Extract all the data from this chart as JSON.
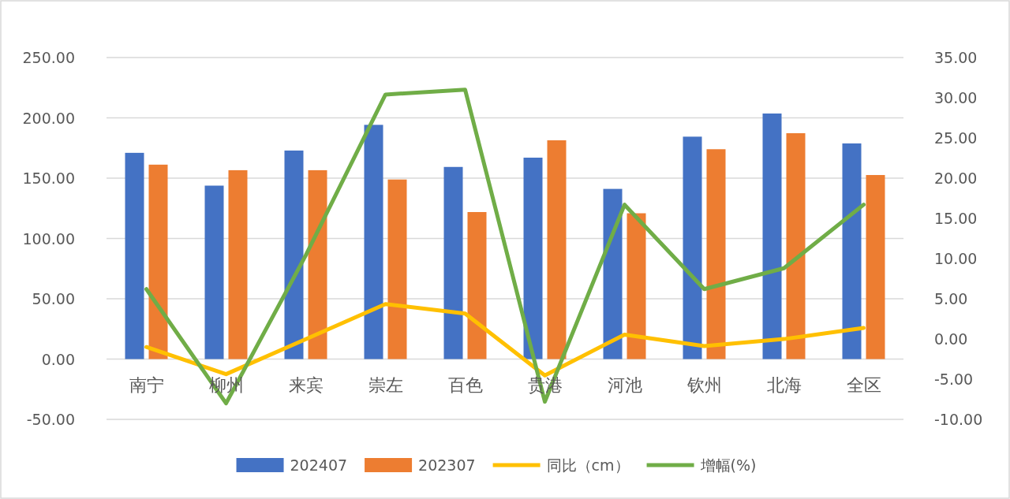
{
  "chart_data": {
    "type": "bar",
    "categories": [
      "南宁",
      "柳州",
      "来宾",
      "崇左",
      "百色",
      "贵港",
      "河池",
      "钦州",
      "北海",
      "全区"
    ],
    "series": [
      {
        "name": "202407",
        "color": "#4472c4",
        "values": [
          171.0,
          143.8,
          172.9,
          194.2,
          159.3,
          167.0,
          141.1,
          184.4,
          203.6,
          178.8
        ]
      },
      {
        "name": "202307",
        "color": "#ed7d31",
        "values": [
          161.2,
          156.6,
          156.6,
          148.9,
          121.9,
          181.4,
          120.9,
          174.0,
          187.3,
          152.6
        ]
      },
      {
        "name": "同比（cm）",
        "type": "line",
        "color": "#ffc000",
        "values": [
          10.0,
          -12.5,
          16.5,
          45.6,
          37.8,
          -13.5,
          20.3,
          10.8,
          16.6,
          25.8
        ]
      },
      {
        "name": "增幅(%)",
        "type": "line",
        "axis": "y2",
        "color": "#70ad47",
        "values": [
          6.2,
          -8.0,
          10.4,
          30.4,
          31.0,
          -7.8,
          16.7,
          6.2,
          8.8,
          16.7
        ]
      }
    ],
    "ylim": [
      -50,
      250
    ],
    "yticks": [
      {
        "value": -50,
        "label": "-50.00"
      },
      {
        "value": 0,
        "label": "0.00"
      },
      {
        "value": 50,
        "label": "50.00"
      },
      {
        "value": 100,
        "label": "100.00"
      },
      {
        "value": 150,
        "label": "150.00"
      },
      {
        "value": 200,
        "label": "200.00"
      },
      {
        "value": 250,
        "label": "250.00"
      }
    ],
    "y2lim": [
      -10,
      35
    ],
    "y2ticks": [
      {
        "value": -10,
        "label": "-10.00"
      },
      {
        "value": -5,
        "label": "-5.00"
      },
      {
        "value": 0,
        "label": "0.00"
      },
      {
        "value": 5,
        "label": "5.00"
      },
      {
        "value": 10,
        "label": "10.00"
      },
      {
        "value": 15,
        "label": "15.00"
      },
      {
        "value": 20,
        "label": "20.00"
      },
      {
        "value": 25,
        "label": "25.00"
      },
      {
        "value": 30,
        "label": "30.00"
      },
      {
        "value": 35,
        "label": "35.00"
      }
    ],
    "grid": "y",
    "legend": "bottom",
    "marker": "none",
    "line_style": "solid"
  }
}
